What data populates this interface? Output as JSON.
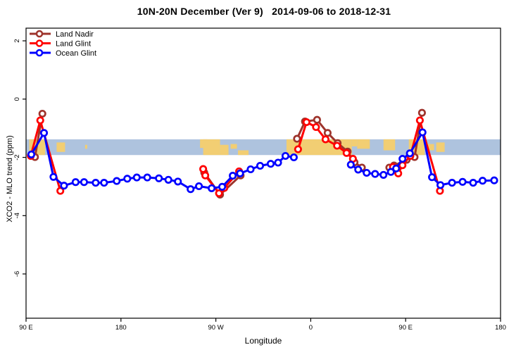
{
  "chart_data": {
    "type": "line",
    "title": "10N-20N December (Ver 9)   2014-09-06 to 2018-12-31",
    "xlabel": "Longitude",
    "ylabel": "XCO2 - MLO trend (ppm)",
    "xlim": [
      90,
      540
    ],
    "ylim": [
      -7.52,
      2.435
    ],
    "grid": false,
    "legend_position": "top-left-inside",
    "x_ticks": [
      {
        "lon": 90,
        "label": "90 E"
      },
      {
        "lon": 180,
        "label": "180"
      },
      {
        "lon": 270,
        "label": "90 W"
      },
      {
        "lon": 360,
        "label": "0"
      },
      {
        "lon": 450,
        "label": "90 E"
      },
      {
        "lon": 540,
        "label": "180"
      }
    ],
    "y_ticks": [
      {
        "value": 2,
        "label": "2"
      },
      {
        "value": 0,
        "label": "0"
      },
      {
        "value": -2,
        "label": "-2"
      },
      {
        "value": -4,
        "label": "-4"
      },
      {
        "value": -6,
        "label": "-6"
      }
    ],
    "map_band": {
      "comment": "world-map strip of the 10N-20N latitude belt drawn across the plot",
      "value_range": [
        -1.38,
        -1.92
      ],
      "ocean_color": "#AEC3DE",
      "land_color": "#F2CE73",
      "land_patches": [
        {
          "lon": [
            93,
            108
          ],
          "frac": [
            0,
            1
          ]
        },
        {
          "lon": [
            119,
            127
          ],
          "frac": [
            0.2,
            0.8
          ]
        },
        {
          "lon": [
            146,
            148
          ],
          "frac": [
            0.35,
            0.6
          ]
        },
        {
          "lon": [
            255,
            262
          ],
          "frac": [
            0,
            0.55
          ]
        },
        {
          "lon": [
            258,
            274
          ],
          "frac": [
            0,
            1
          ]
        },
        {
          "lon": [
            274,
            282
          ],
          "frac": [
            0.35,
            1
          ]
        },
        {
          "lon": [
            284,
            290
          ],
          "frac": [
            0.3,
            0.6
          ]
        },
        {
          "lon": [
            291,
            301
          ],
          "frac": [
            0.7,
            1
          ]
        },
        {
          "lon": [
            337,
            399
          ],
          "frac": [
            0,
            1
          ]
        },
        {
          "lon": [
            399,
            404
          ],
          "frac": [
            0,
            0.45
          ]
        },
        {
          "lon": [
            404,
            416
          ],
          "frac": [
            0,
            0.6
          ]
        },
        {
          "lon": [
            429,
            440
          ],
          "frac": [
            0,
            0.7
          ]
        },
        {
          "lon": [
            453,
            468
          ],
          "frac": [
            0,
            1
          ]
        },
        {
          "lon": [
            471,
            477
          ],
          "frac": [
            0.3,
            0.7
          ]
        },
        {
          "lon": [
            479,
            487
          ],
          "frac": [
            0.2,
            0.8
          ]
        }
      ]
    },
    "series": [
      {
        "name": "Land Nadir",
        "color": "#9E342C",
        "marker": "open-circle",
        "segments": [
          [
            [
              98.5,
              -1.99
            ],
            [
              105.5,
              -0.5
            ]
          ],
          [
            [
              259,
              -2.52
            ],
            [
              274,
              -3.28
            ],
            [
              293.5,
              -2.62
            ]
          ],
          [
            [
              347,
              -1.36
            ],
            [
              354.5,
              -0.77
            ],
            [
              366,
              -0.71
            ],
            [
              376,
              -1.16
            ],
            [
              385.5,
              -1.51
            ],
            [
              395,
              -1.8
            ],
            [
              401.5,
              -2.17
            ],
            [
              408.5,
              -2.35
            ]
          ],
          [
            [
              434.5,
              -2.35
            ],
            [
              439,
              -2.28
            ],
            [
              451,
              -2.08
            ],
            [
              458.5,
              -1.99
            ],
            [
              465.5,
              -0.47
            ]
          ]
        ]
      },
      {
        "name": "Land Glint",
        "color": "#FF0000",
        "marker": "open-circle",
        "segments": [
          [
            [
              94.5,
              -1.95
            ],
            [
              103.5,
              -0.73
            ],
            [
              122.5,
              -3.15
            ]
          ],
          [
            [
              258,
              -2.4
            ],
            [
              260,
              -2.62
            ],
            [
              273,
              -3.23
            ],
            [
              278,
              -3.05
            ],
            [
              292,
              -2.48
            ]
          ],
          [
            [
              348,
              -1.72
            ],
            [
              356,
              -0.79
            ],
            [
              365,
              -0.96
            ],
            [
              374,
              -1.38
            ],
            [
              385,
              -1.6
            ],
            [
              394,
              -1.85
            ],
            [
              400,
              -2.05
            ]
          ],
          [
            [
              438,
              -2.33
            ],
            [
              443,
              -2.55
            ],
            [
              447,
              -2.27
            ],
            [
              454.5,
              -1.95
            ],
            [
              463.5,
              -0.73
            ],
            [
              482.5,
              -3.15
            ]
          ]
        ]
      },
      {
        "name": "Ocean Glint",
        "color": "#0000FF",
        "marker": "open-circle",
        "segments": [
          [
            [
              95,
              -1.9
            ],
            [
              107,
              -1.16
            ],
            [
              116,
              -2.67
            ],
            [
              126,
              -2.97
            ],
            [
              137,
              -2.85
            ],
            [
              145,
              -2.85
            ],
            [
              156,
              -2.87
            ],
            [
              164,
              -2.87
            ],
            [
              176,
              -2.81
            ],
            [
              186,
              -2.73
            ],
            [
              195,
              -2.69
            ],
            [
              205,
              -2.69
            ],
            [
              216,
              -2.72
            ],
            [
              225,
              -2.77
            ],
            [
              234,
              -2.83
            ],
            [
              246,
              -3.09
            ],
            [
              254,
              -2.99
            ],
            [
              266,
              -3.06
            ],
            [
              276,
              -3.01
            ],
            [
              286,
              -2.63
            ],
            [
              293,
              -2.55
            ],
            [
              303,
              -2.41
            ],
            [
              312,
              -2.29
            ],
            [
              322,
              -2.22
            ],
            [
              329,
              -2.18
            ],
            [
              336,
              -1.95
            ],
            [
              344,
              -2.0
            ]
          ],
          [
            [
              398,
              -2.25
            ],
            [
              405,
              -2.42
            ],
            [
              413,
              -2.53
            ],
            [
              421,
              -2.57
            ],
            [
              429,
              -2.6
            ],
            [
              436,
              -2.5
            ],
            [
              441,
              -2.38
            ],
            [
              447,
              -2.05
            ],
            [
              454,
              -1.86
            ],
            [
              466,
              -1.14
            ],
            [
              475,
              -2.68
            ],
            [
              483,
              -2.95
            ],
            [
              494,
              -2.87
            ],
            [
              504,
              -2.84
            ],
            [
              514,
              -2.87
            ],
            [
              523,
              -2.8
            ],
            [
              534,
              -2.79
            ]
          ]
        ]
      }
    ]
  }
}
